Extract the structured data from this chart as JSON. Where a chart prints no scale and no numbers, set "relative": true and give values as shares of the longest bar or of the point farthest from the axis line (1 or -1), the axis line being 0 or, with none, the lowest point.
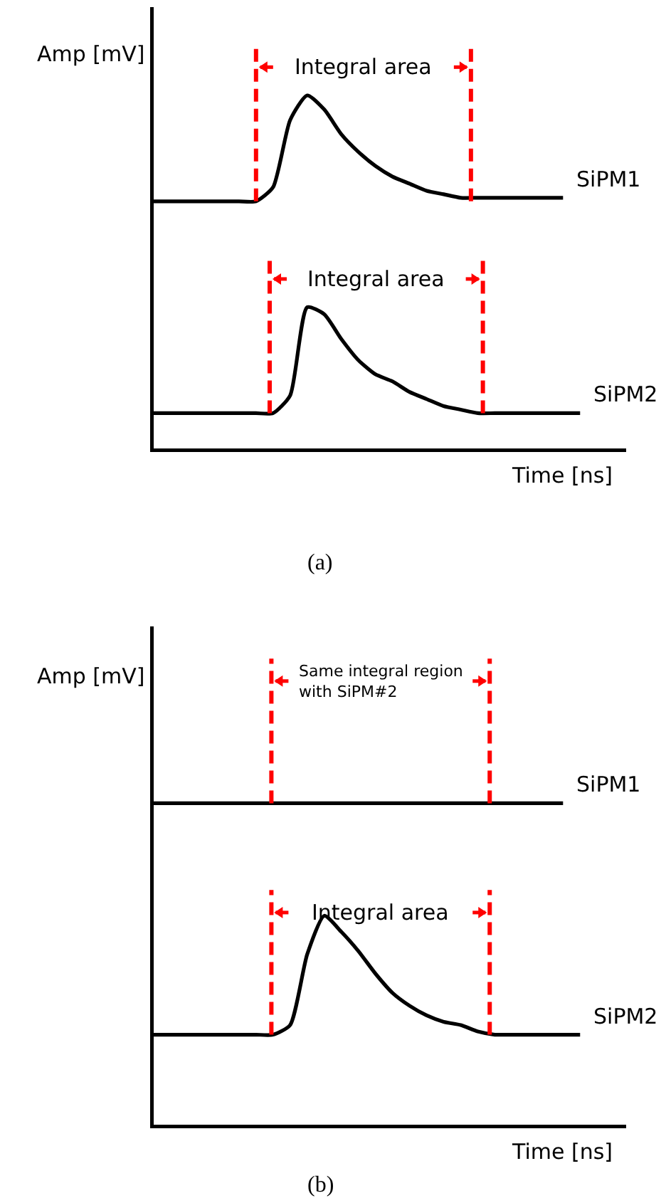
{
  "chart_data": [
    {
      "type": "line",
      "title": "(a)",
      "xlabel": "Time [ns]",
      "ylabel": "Amp [mV]",
      "relative": true,
      "legend": false,
      "marker": "none",
      "line_style": "solid",
      "annotations": [
        "Integral area",
        "Integral area"
      ],
      "categories": [
        null,
        null,
        null,
        null,
        null,
        null,
        null,
        null,
        null,
        null,
        null,
        null,
        null,
        null,
        null,
        null,
        null,
        null,
        null,
        null,
        null,
        null,
        null,
        null,
        null,
        null
      ],
      "series": [
        {
          "name": "SiPM1",
          "color": "#000000",
          "values": [
            0.7,
            0.7,
            0.7,
            0.7,
            0.7,
            0.7,
            0.7,
            0.74,
            0.93,
            1.0,
            0.96,
            0.89,
            0.84,
            0.8,
            0.77,
            0.75,
            0.73,
            0.72,
            0.71,
            0.71,
            0.71,
            0.71,
            0.71,
            0.71,
            0.71,
            null
          ]
        },
        {
          "name": "SiPM2",
          "color": "#000000",
          "values": [
            0.1,
            0.1,
            0.1,
            0.1,
            0.1,
            0.1,
            0.1,
            0.1,
            0.15,
            0.4,
            0.38,
            0.31,
            0.25,
            0.21,
            0.19,
            0.16,
            0.14,
            0.12,
            0.11,
            0.1,
            0.1,
            0.1,
            0.1,
            0.1,
            0.1,
            0.1
          ]
        }
      ]
    },
    {
      "type": "line",
      "title": "(b)",
      "xlabel": "Time [ns]",
      "ylabel": "Amp [mV]",
      "relative": true,
      "legend": false,
      "marker": "none",
      "line_style": "solid",
      "annotations": [
        "Same integral region\nwith SiPM#2",
        "Integral area"
      ],
      "categories": [
        null,
        null,
        null,
        null,
        null,
        null,
        null,
        null,
        null,
        null,
        null,
        null,
        null,
        null,
        null,
        null,
        null,
        null,
        null,
        null,
        null,
        null,
        null,
        null,
        null,
        null
      ],
      "series": [
        {
          "name": "SiPM1",
          "color": "#000000",
          "values": [
            1.0,
            1.0,
            1.0,
            1.0,
            1.0,
            1.0,
            1.0,
            1.0,
            1.0,
            1.0,
            1.0,
            1.0,
            1.0,
            1.0,
            1.0,
            1.0,
            1.0,
            1.0,
            1.0,
            1.0,
            1.0,
            1.0,
            1.0,
            1.0,
            1.0,
            null
          ]
        },
        {
          "name": "SiPM2",
          "color": "#000000",
          "values": [
            0.28,
            0.28,
            0.28,
            0.28,
            0.28,
            0.28,
            0.28,
            0.28,
            0.31,
            0.53,
            0.65,
            0.6,
            0.54,
            0.47,
            0.41,
            0.37,
            0.34,
            0.32,
            0.31,
            0.29,
            0.28,
            0.28,
            0.28,
            0.28,
            0.28,
            0.28
          ]
        }
      ]
    }
  ]
}
